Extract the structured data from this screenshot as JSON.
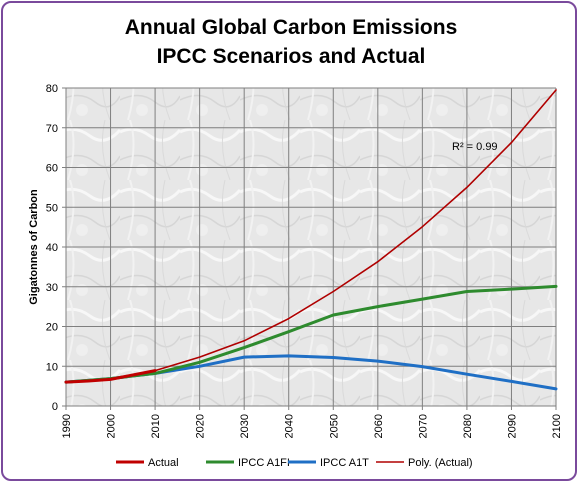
{
  "chart_data": {
    "type": "line",
    "title": "Annual Global Carbon Emissions",
    "subtitle": "IPCC Scenarios and Actual",
    "xlabel": "",
    "ylabel": "Gigatonnes of Carbon",
    "xlim": [
      1990,
      2100
    ],
    "ylim": [
      0,
      80
    ],
    "x_ticks": [
      "1990",
      "2000",
      "2010",
      "2020",
      "2030",
      "2040",
      "2050",
      "2060",
      "2070",
      "2080",
      "2090",
      "2100"
    ],
    "y_ticks": [
      "0",
      "10",
      "20",
      "30",
      "40",
      "50",
      "60",
      "70",
      "80"
    ],
    "grid": true,
    "legend_position": "bottom",
    "annotation": {
      "text": "R² = 0.99"
    },
    "series": [
      {
        "name": "Actual",
        "color": "#c00000",
        "x": [
          1990,
          1995,
          2000,
          2005,
          2010
        ],
        "values": [
          6.0,
          6.3,
          6.7,
          7.8,
          8.9
        ]
      },
      {
        "name": "IPCC A1FI",
        "color": "#2e8b2e",
        "x": [
          1990,
          2000,
          2010,
          2020,
          2030,
          2040,
          2050,
          2060,
          2070,
          2080,
          2090,
          2100
        ],
        "values": [
          6.0,
          6.9,
          8.2,
          11.0,
          14.7,
          18.7,
          22.9,
          25.0,
          26.9,
          28.8,
          29.4,
          30.1
        ]
      },
      {
        "name": "IPCC A1T",
        "color": "#1f6fc5",
        "x": [
          1990,
          2000,
          2010,
          2020,
          2030,
          2040,
          2050,
          2060,
          2070,
          2080,
          2090,
          2100
        ],
        "values": [
          6.0,
          6.9,
          8.2,
          10.0,
          12.3,
          12.6,
          12.2,
          11.3,
          9.9,
          8.0,
          6.2,
          4.3
        ]
      },
      {
        "name": "Poly. (Actual)",
        "color": "#b00000",
        "x": [
          1990,
          2000,
          2010,
          2020,
          2030,
          2040,
          2050,
          2060,
          2070,
          2080,
          2090,
          2100
        ],
        "values": [
          5.9,
          6.6,
          8.9,
          12.3,
          16.4,
          22.0,
          28.8,
          36.3,
          45.1,
          55.0,
          66.3,
          79.5
        ]
      }
    ]
  }
}
